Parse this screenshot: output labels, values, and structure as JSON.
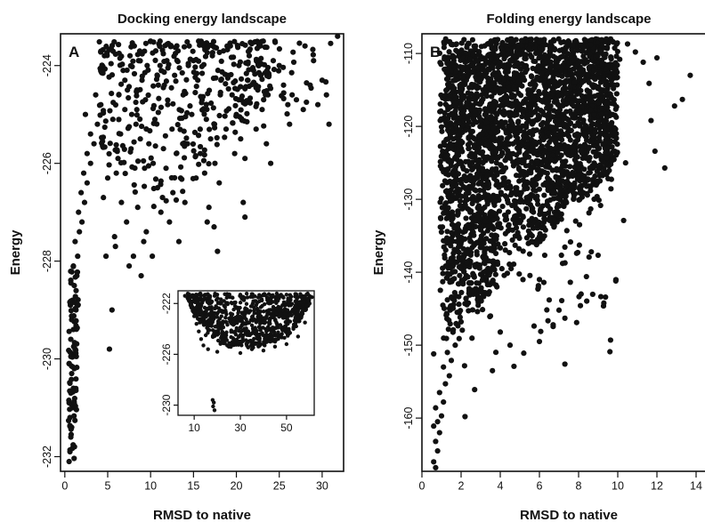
{
  "figure": {
    "panels": {
      "A": {
        "letter": "A",
        "title": "Docking energy landscape",
        "xlabel": "RMSD to native",
        "ylabel": "Energy"
      },
      "B": {
        "letter": "B",
        "title": "Folding energy landscape",
        "xlabel": "RMSD to native",
        "ylabel": "Energy"
      }
    }
  },
  "chart_data": [
    {
      "id": "A",
      "type": "scatter",
      "title": "Docking energy landscape",
      "xlabel": "RMSD to native",
      "ylabel": "Energy",
      "xlim": [
        -0.5,
        32.5
      ],
      "ylim": [
        -232.3,
        -223.35
      ],
      "xticks": [
        0,
        5,
        10,
        15,
        20,
        25,
        30
      ],
      "yticks": [
        -232,
        -230,
        -228,
        -226,
        -224
      ],
      "color": "#111111",
      "points": [
        [
          0.5,
          -232.1
        ],
        [
          0.6,
          -231.9
        ],
        [
          0.7,
          -231.6
        ],
        [
          0.8,
          -231.4
        ],
        [
          0.6,
          -231.2
        ],
        [
          0.9,
          -231.0
        ],
        [
          0.5,
          -230.9
        ],
        [
          0.7,
          -230.7
        ],
        [
          1.0,
          -230.6
        ],
        [
          0.6,
          -230.5
        ],
        [
          0.8,
          -230.3
        ],
        [
          1.1,
          -230.2
        ],
        [
          0.5,
          -230.1
        ],
        [
          0.9,
          -229.9
        ],
        [
          1.2,
          -229.8
        ],
        [
          0.7,
          -229.6
        ],
        [
          1.0,
          -229.4
        ],
        [
          0.8,
          -229.2
        ],
        [
          1.3,
          -229.0
        ],
        [
          0.9,
          -228.8
        ],
        [
          1.1,
          -228.5
        ],
        [
          1.4,
          -228.3
        ],
        [
          1.0,
          -228.1
        ],
        [
          1.5,
          -227.9
        ],
        [
          1.2,
          -227.6
        ],
        [
          1.7,
          -227.4
        ],
        [
          2.0,
          -227.2
        ],
        [
          1.6,
          -227.0
        ],
        [
          2.3,
          -226.8
        ],
        [
          1.9,
          -226.6
        ],
        [
          2.6,
          -226.4
        ],
        [
          2.2,
          -226.2
        ],
        [
          3.0,
          -226.0
        ],
        [
          2.6,
          -225.8
        ],
        [
          3.4,
          -225.6
        ],
        [
          3.0,
          -225.4
        ],
        [
          3.8,
          -225.2
        ],
        [
          2.4,
          -225.0
        ],
        [
          4.2,
          -224.8
        ],
        [
          3.6,
          -224.6
        ],
        [
          5.2,
          -229.8
        ],
        [
          5.5,
          -229.0
        ],
        [
          4.8,
          -227.9
        ],
        [
          5.8,
          -227.5
        ],
        [
          4.5,
          -226.7
        ],
        [
          5.0,
          -226.3
        ],
        [
          6.2,
          -225.9
        ],
        [
          6.5,
          -225.4
        ],
        [
          5.6,
          -225.1
        ],
        [
          7.0,
          -224.9
        ],
        [
          7.3,
          -224.5
        ],
        [
          6.8,
          -224.1
        ],
        [
          7.6,
          -223.8
        ],
        [
          8.1,
          -223.6
        ],
        [
          8.6,
          -223.9
        ],
        [
          9.0,
          -224.3
        ],
        [
          9.4,
          -224.7
        ],
        [
          8.3,
          -225.2
        ],
        [
          9.8,
          -225.6
        ],
        [
          10.3,
          -226.0
        ],
        [
          10.8,
          -226.5
        ],
        [
          11.2,
          -227.0
        ],
        [
          9.5,
          -227.4
        ],
        [
          8.0,
          -227.9
        ],
        [
          8.9,
          -228.3
        ],
        [
          10.0,
          -223.5
        ],
        [
          10.6,
          -223.7
        ],
        [
          11.1,
          -224.0
        ],
        [
          11.6,
          -224.4
        ],
        [
          12.0,
          -224.8
        ],
        [
          12.5,
          -225.3
        ],
        [
          13.0,
          -225.8
        ],
        [
          13.5,
          -226.3
        ],
        [
          14.0,
          -226.8
        ],
        [
          12.2,
          -227.2
        ],
        [
          13.3,
          -227.6
        ],
        [
          14.5,
          -223.6
        ],
        [
          15.0,
          -223.9
        ],
        [
          15.5,
          -224.3
        ],
        [
          16.0,
          -224.7
        ],
        [
          16.5,
          -225.1
        ],
        [
          17.0,
          -225.5
        ],
        [
          17.5,
          -226.0
        ],
        [
          18.0,
          -226.4
        ],
        [
          16.8,
          -226.9
        ],
        [
          17.4,
          -227.3
        ],
        [
          17.8,
          -227.8
        ],
        [
          18.5,
          -223.7
        ],
        [
          19.0,
          -224.2
        ],
        [
          19.5,
          -224.6
        ],
        [
          20.0,
          -225.0
        ],
        [
          20.5,
          -225.5
        ],
        [
          21.0,
          -225.9
        ],
        [
          20.8,
          -226.8
        ],
        [
          21.0,
          -227.1
        ],
        [
          21.5,
          -223.8
        ],
        [
          22.0,
          -224.1
        ],
        [
          22.5,
          -224.5
        ],
        [
          23.0,
          -224.9
        ],
        [
          23.5,
          -225.6
        ],
        [
          24.0,
          -226.0
        ],
        [
          24.5,
          -223.5
        ],
        [
          25.0,
          -224.0
        ],
        [
          25.5,
          -224.4
        ],
        [
          26.0,
          -224.8
        ],
        [
          26.5,
          -224.6
        ],
        [
          27.0,
          -224.7
        ],
        [
          28.0,
          -223.6
        ],
        [
          29.0,
          -223.9
        ],
        [
          30.0,
          -224.3
        ],
        [
          30.5,
          -224.6
        ],
        [
          30.8,
          -225.2
        ],
        [
          31.8,
          -223.4
        ],
        [
          7.8,
          -225.0
        ],
        [
          8.8,
          -225.5
        ],
        [
          9.3,
          -226.1
        ],
        [
          10.5,
          -225.1
        ],
        [
          11.5,
          -225.7
        ],
        [
          12.8,
          -224.2
        ],
        [
          13.8,
          -224.6
        ],
        [
          14.8,
          -225.0
        ],
        [
          15.8,
          -225.8
        ],
        [
          16.3,
          -226.2
        ],
        [
          18.8,
          -225.3
        ],
        [
          19.8,
          -225.8
        ],
        [
          6.0,
          -226.2
        ],
        [
          6.6,
          -226.8
        ],
        [
          7.2,
          -227.2
        ],
        [
          5.9,
          -227.7
        ],
        [
          7.5,
          -228.1
        ],
        [
          8.5,
          -226.9
        ],
        [
          9.2,
          -227.6
        ],
        [
          10.2,
          -227.9
        ],
        [
          11.8,
          -226.1
        ],
        [
          12.6,
          -226.6
        ],
        [
          14.3,
          -225.6
        ],
        [
          15.3,
          -226.3
        ],
        [
          16.6,
          -227.2
        ],
        [
          22.3,
          -225.3
        ],
        [
          23.8,
          -224.2
        ],
        [
          26.2,
          -225.2
        ],
        [
          27.8,
          -224.9
        ],
        [
          29.5,
          -224.8
        ],
        [
          28.6,
          -224.4
        ],
        [
          6.3,
          -224.6
        ],
        [
          7.0,
          -224.3
        ],
        [
          8.4,
          -224.5
        ],
        [
          9.6,
          -224.0
        ],
        [
          10.9,
          -224.4
        ],
        [
          11.9,
          -223.9
        ],
        [
          13.2,
          -223.7
        ],
        [
          14.4,
          -224.0
        ],
        [
          15.6,
          -223.5
        ],
        [
          17.2,
          -223.8
        ],
        [
          18.2,
          -224.3
        ],
        [
          19.3,
          -223.6
        ],
        [
          20.3,
          -224.0
        ],
        [
          21.3,
          -224.3
        ],
        [
          22.8,
          -223.6
        ],
        [
          24.3,
          -223.9
        ]
      ]
    },
    {
      "id": "inset-A",
      "type": "scatter",
      "title": "",
      "xlim": [
        3,
        62
      ],
      "ylim": [
        -230.8,
        -221.0
      ],
      "xticks": [
        10,
        30,
        50
      ],
      "yticks": [
        -230,
        -226,
        -222
      ],
      "color": "#111111",
      "points": [
        [
          18.2,
          -230.1
        ],
        [
          18.5,
          -229.8
        ],
        [
          18.0,
          -229.6
        ],
        [
          18.8,
          -230.4
        ],
        [
          8,
          -221.6
        ],
        [
          9,
          -222.3
        ],
        [
          10,
          -223.0
        ],
        [
          11,
          -223.6
        ],
        [
          12,
          -224.2
        ],
        [
          13,
          -224.8
        ],
        [
          14,
          -225.3
        ],
        [
          16,
          -225.6
        ],
        [
          20,
          -225.8
        ],
        [
          25,
          -225.4
        ],
        [
          30,
          -225.9
        ],
        [
          35,
          -225.6
        ],
        [
          40,
          -225.7
        ],
        [
          45,
          -225.4
        ],
        [
          50,
          -225.2
        ],
        [
          55,
          -224.6
        ],
        [
          58,
          -223.5
        ],
        [
          60,
          -222.0
        ],
        [
          6,
          -221.4
        ],
        [
          15,
          -224.5
        ],
        [
          22,
          -225.0
        ],
        [
          28,
          -224.9
        ],
        [
          33,
          -225.1
        ],
        [
          38,
          -224.8
        ],
        [
          43,
          -225.0
        ],
        [
          48,
          -224.4
        ],
        [
          53,
          -224.0
        ],
        [
          57,
          -222.8
        ],
        [
          61,
          -221.5
        ],
        [
          12,
          -221.3
        ],
        [
          20,
          -221.3
        ],
        [
          30,
          -221.3
        ],
        [
          40,
          -221.3
        ],
        [
          50,
          -221.3
        ],
        [
          59,
          -221.3
        ]
      ],
      "bands": [
        {
          "x": [
            7,
            60
          ],
          "ytop": -221.2,
          "ybottom": [
            -221.8,
            -223.4,
            -224.5,
            -225.2,
            -225.5,
            -225.4,
            -225.6,
            -225.3,
            -225.0,
            -224.6,
            -223.6,
            -222.0
          ]
        }
      ]
    },
    {
      "id": "B",
      "type": "scatter",
      "title": "Folding energy landscape",
      "xlabel": "RMSD to native",
      "ylabel": "Energy",
      "xlim": [
        0,
        15
      ],
      "ylim": [
        -167.3,
        -107.3
      ],
      "xticks": [
        0,
        2,
        4,
        6,
        8,
        10,
        12,
        14
      ],
      "yticks": [
        -160,
        -150,
        -140,
        -130,
        -120,
        -110
      ],
      "color": "#111111",
      "points": [
        [
          0.7,
          -166.8
        ],
        [
          0.6,
          -166.0
        ],
        [
          0.8,
          -164.5
        ],
        [
          0.7,
          -163.2
        ],
        [
          0.9,
          -162.0
        ],
        [
          0.6,
          -161.1
        ],
        [
          0.8,
          -160.5
        ],
        [
          1.0,
          -159.7
        ],
        [
          0.7,
          -158.6
        ],
        [
          1.1,
          -157.8
        ],
        [
          0.9,
          -156.5
        ],
        [
          1.2,
          -155.3
        ],
        [
          1.4,
          -154.2
        ],
        [
          1.1,
          -153.0
        ],
        [
          1.5,
          -152.1
        ],
        [
          1.3,
          -151.0
        ],
        [
          0.6,
          -151.2
        ],
        [
          1.7,
          -150.0
        ],
        [
          1.9,
          -149.1
        ],
        [
          1.6,
          -147.9
        ],
        [
          2.0,
          -146.8
        ],
        [
          1.8,
          -145.5
        ],
        [
          2.2,
          -144.3
        ],
        [
          2.4,
          -142.9
        ],
        [
          2.1,
          -141.6
        ],
        [
          2.6,
          -140.2
        ],
        [
          2.3,
          -138.7
        ],
        [
          2.8,
          -137.2
        ],
        [
          2.5,
          -135.8
        ],
        [
          3.0,
          -134.2
        ],
        [
          2.7,
          -132.8
        ],
        [
          3.2,
          -131.1
        ],
        [
          2.9,
          -129.5
        ],
        [
          3.4,
          -127.8
        ],
        [
          3.1,
          -126.0
        ],
        [
          3.6,
          -124.3
        ],
        [
          3.3,
          -122.6
        ],
        [
          3.8,
          -120.8
        ],
        [
          3.5,
          -119.0
        ],
        [
          4.0,
          -117.2
        ],
        [
          3.7,
          -115.4
        ],
        [
          4.2,
          -113.6
        ],
        [
          3.9,
          -111.9
        ],
        [
          4.4,
          -110.1
        ],
        [
          4.1,
          -108.7
        ],
        [
          2.2,
          -159.8
        ],
        [
          3.6,
          -153.5
        ],
        [
          4.7,
          -152.9
        ],
        [
          5.2,
          -151.1
        ],
        [
          6.0,
          -149.5
        ],
        [
          6.7,
          -147.2
        ],
        [
          7.3,
          -146.3
        ],
        [
          7.9,
          -146.9
        ],
        [
          7.3,
          -152.6
        ],
        [
          9.6,
          -150.9
        ],
        [
          9.9,
          -141.2
        ],
        [
          10.3,
          -132.9
        ],
        [
          10.4,
          -125.0
        ],
        [
          11.7,
          -119.2
        ],
        [
          11.9,
          -123.4
        ],
        [
          12.4,
          -125.7
        ],
        [
          12.9,
          -117.2
        ],
        [
          13.3,
          -116.3
        ],
        [
          13.7,
          -113.0
        ],
        [
          14.7,
          -108.7
        ],
        [
          10.5,
          -108.7
        ],
        [
          10.9,
          -109.8
        ],
        [
          11.3,
          -111.2
        ],
        [
          11.6,
          -114.1
        ],
        [
          12.0,
          -110.6
        ],
        [
          4.6,
          -108.2
        ],
        [
          5.1,
          -108.9
        ],
        [
          5.6,
          -110.5
        ],
        [
          6.1,
          -109.4
        ],
        [
          6.6,
          -111.7
        ],
        [
          7.1,
          -108.5
        ],
        [
          7.6,
          -110.2
        ],
        [
          8.1,
          -112.1
        ],
        [
          8.6,
          -108.8
        ],
        [
          9.1,
          -109.6
        ],
        [
          9.6,
          -113.2
        ],
        [
          10.1,
          -110.8
        ],
        [
          4.8,
          -118.3
        ],
        [
          5.4,
          -121.6
        ],
        [
          5.9,
          -124.8
        ],
        [
          6.4,
          -127.9
        ],
        [
          6.9,
          -131.1
        ],
        [
          7.4,
          -134.3
        ],
        [
          7.9,
          -137.4
        ],
        [
          8.4,
          -140.6
        ],
        [
          4.5,
          -128.5
        ],
        [
          5.0,
          -133.2
        ],
        [
          5.5,
          -137.5
        ],
        [
          6.0,
          -141.0
        ],
        [
          6.5,
          -143.8
        ],
        [
          7.0,
          -145.2
        ],
        [
          3.0,
          -143.5
        ],
        [
          3.5,
          -146.0
        ],
        [
          4.0,
          -148.2
        ],
        [
          4.5,
          -150.0
        ]
      ],
      "density": [
        {
          "xlo": 0.9,
          "xhi": 10.0,
          "ylo": -150.0,
          "yhi": -108.0
        },
        {
          "xlo": 1.2,
          "xhi": 3.8,
          "ylo": -158.0,
          "yhi": -110.0
        },
        {
          "xlo": 3.5,
          "xhi": 9.5,
          "ylo": -138.0,
          "yhi": -108.0
        }
      ]
    }
  ]
}
